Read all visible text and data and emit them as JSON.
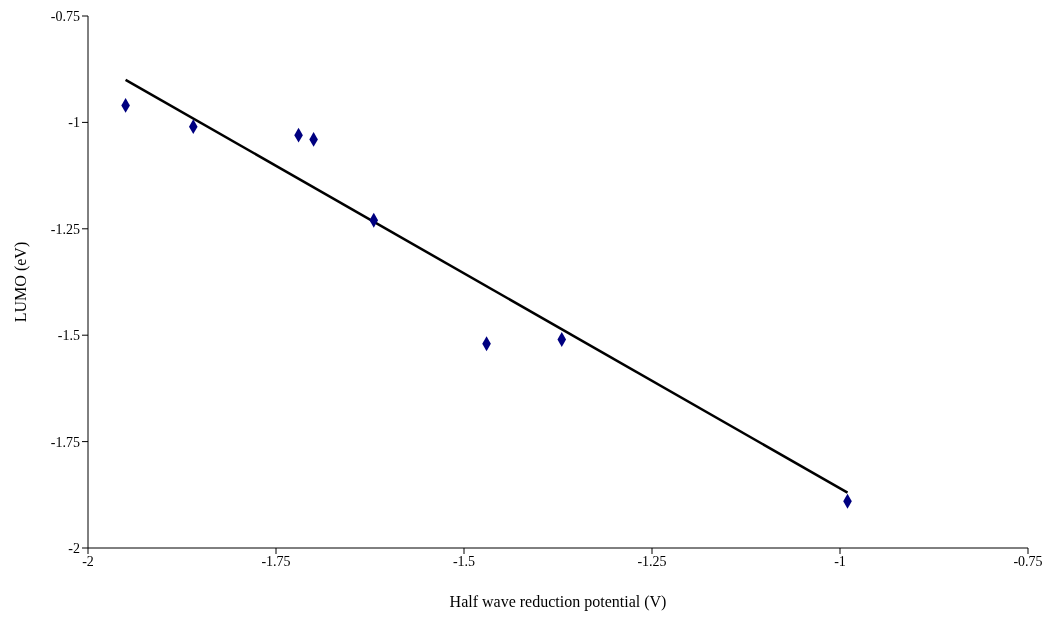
{
  "chart_data": {
    "type": "scatter",
    "xlabel": "Half wave reduction potential (V)",
    "ylabel": "LUMO (eV)",
    "xlim": [
      -2,
      -0.75
    ],
    "xticks": [
      -2,
      -1.75,
      -1.5,
      -1.25,
      -1,
      -0.75
    ],
    "ylim": [
      -2,
      -0.75
    ],
    "yticks": [
      -2,
      -1.75,
      -1.5,
      -1.25,
      -1,
      -0.75
    ],
    "grid": false,
    "legend": false,
    "marker": "diamond",
    "series": [
      {
        "color": "#000080",
        "x": [
          -1.95,
          -1.86,
          -1.72,
          -1.7,
          -1.62,
          -1.47,
          -1.37,
          -0.99
        ],
        "values": [
          -0.96,
          -1.01,
          -1.03,
          -1.04,
          -1.23,
          -1.52,
          -1.51,
          -1.89
        ]
      },
      {
        "type": "line",
        "color": "#000000",
        "marker": "none",
        "line_style": "solid",
        "x": [
          -1.95,
          -0.99
        ],
        "values": [
          -0.9,
          -1.87
        ]
      }
    ]
  }
}
